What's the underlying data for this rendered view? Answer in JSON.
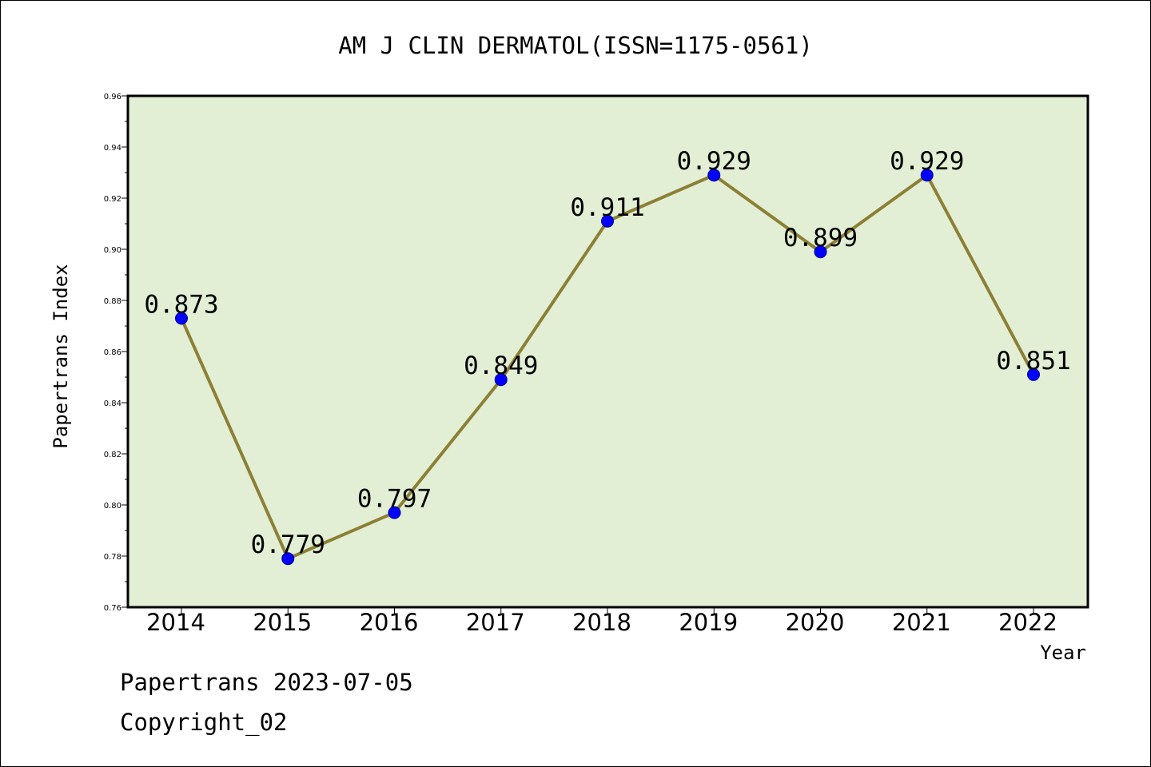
{
  "chart_data": {
    "type": "line",
    "title": "AM J CLIN DERMATOL(ISSN=1175-0561)",
    "xlabel": "Year",
    "ylabel": "Papertrans Index",
    "x": [
      "2014",
      "2015",
      "2016",
      "2017",
      "2018",
      "2019",
      "2020",
      "2021",
      "2022"
    ],
    "values": [
      0.873,
      0.779,
      0.797,
      0.849,
      0.911,
      0.929,
      0.899,
      0.929,
      0.851
    ],
    "data_labels": [
      "0.873",
      "0.779",
      "0.797",
      "0.849",
      "0.911",
      "0.929",
      "0.899",
      "0.929",
      "0.851"
    ],
    "ylim": [
      0.76,
      0.96
    ],
    "yticks": [
      "0.76",
      "0.78",
      "0.80",
      "0.82",
      "0.84",
      "0.86",
      "0.88",
      "0.90",
      "0.92",
      "0.94",
      "0.96"
    ],
    "grid": false,
    "legend": "none",
    "colors": {
      "plot_background": "#e2efd5",
      "line": "#8b8035",
      "marker": "#0000ff"
    }
  },
  "footer": {
    "line1": "Papertrans 2023-07-05",
    "line2": "Copyright_02"
  }
}
